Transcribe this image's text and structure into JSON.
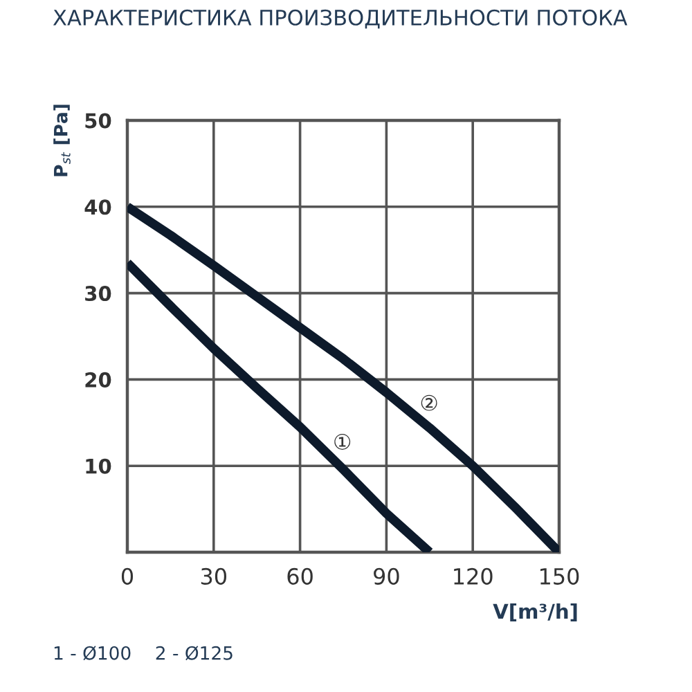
{
  "chart_data": {
    "type": "line",
    "title": "ХАРАКТЕРИСТИКА ПРОИЗВОДИТЕЛЬНОСТИ ПОТОКА",
    "xlabel": "V[m³/h]",
    "ylabel": "P$_{st}$ [Pa]",
    "series": [
      {
        "name": "①",
        "color": "#0d1a2b",
        "x": [
          0,
          15,
          30,
          45,
          60,
          75,
          90,
          105
        ],
        "values": [
          33.5,
          28.5,
          23.6,
          19,
          14.5,
          9.6,
          4.5,
          0
        ]
      },
      {
        "name": "②",
        "color": "#0d1a2b",
        "x": [
          0,
          15,
          30,
          45,
          60,
          75,
          90,
          105,
          120,
          135,
          150
        ],
        "values": [
          40,
          36.7,
          33.2,
          29.6,
          26,
          22.4,
          18.5,
          14.4,
          10,
          5.1,
          0
        ]
      }
    ],
    "xlim": [
      0,
      150
    ],
    "xticks": [
      0,
      30,
      60,
      90,
      120,
      150
    ],
    "ylim": [
      0,
      50
    ],
    "yticks": [
      10,
      20,
      30,
      40,
      50
    ],
    "grid": true,
    "marker": "none",
    "line_style": "solid",
    "annotations": [
      "1 - Ø100    2 - Ø125"
    ]
  }
}
